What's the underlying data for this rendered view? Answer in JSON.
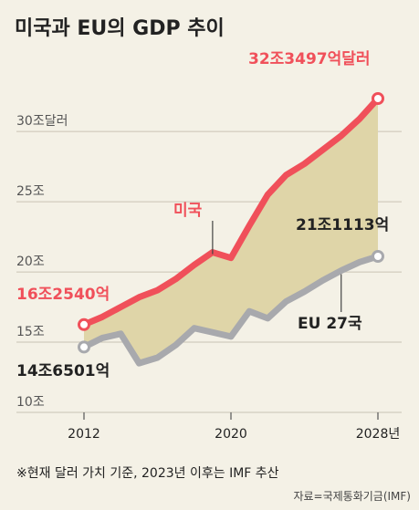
{
  "chart_data": {
    "type": "line",
    "title": "미국과 EU의 GDP 추이",
    "y_unit_label": "30조달러",
    "y_ticks": [
      {
        "value": 10,
        "label": "10조"
      },
      {
        "value": 15,
        "label": "15조"
      },
      {
        "value": 20,
        "label": "20조"
      },
      {
        "value": 25,
        "label": "25조"
      },
      {
        "value": 30,
        "label": "30조달러"
      }
    ],
    "x_ticks": [
      {
        "value": 2012,
        "label": "2012"
      },
      {
        "value": 2020,
        "label": "2020"
      },
      {
        "value": 2028,
        "label": "2028년"
      }
    ],
    "ylim": [
      10,
      33
    ],
    "xlim": [
      2012,
      2028
    ],
    "grid": true,
    "series": [
      {
        "name": "미국",
        "color": "#f0505a",
        "x": [
          2012,
          2013,
          2014,
          2015,
          2016,
          2017,
          2018,
          2019,
          2020,
          2021,
          2022,
          2023,
          2024,
          2025,
          2026,
          2027,
          2028
        ],
        "values": [
          16.25,
          16.8,
          17.5,
          18.2,
          18.7,
          19.5,
          20.5,
          21.4,
          21.0,
          23.3,
          25.5,
          26.9,
          27.7,
          28.7,
          29.7,
          30.9,
          32.35
        ],
        "label_start": "16조2540억",
        "label_end": "32조3497억달러"
      },
      {
        "name": "EU 27국",
        "color": "#a8a9ad",
        "x": [
          2012,
          2013,
          2014,
          2015,
          2016,
          2017,
          2018,
          2019,
          2020,
          2021,
          2022,
          2023,
          2024,
          2025,
          2026,
          2027,
          2028
        ],
        "values": [
          14.65,
          15.3,
          15.6,
          13.5,
          13.9,
          14.8,
          16.0,
          15.7,
          15.4,
          17.2,
          16.7,
          17.9,
          18.6,
          19.4,
          20.1,
          20.7,
          21.11
        ],
        "label_start": "14조6501억",
        "label_end": "21조1113억"
      }
    ],
    "fill_between": {
      "color": "#dfd5a8"
    },
    "note": "※현재 달러 가치 기준, 2023년 이후는 IMF 추산",
    "source": "자료=국제통화기금(IMF)"
  }
}
